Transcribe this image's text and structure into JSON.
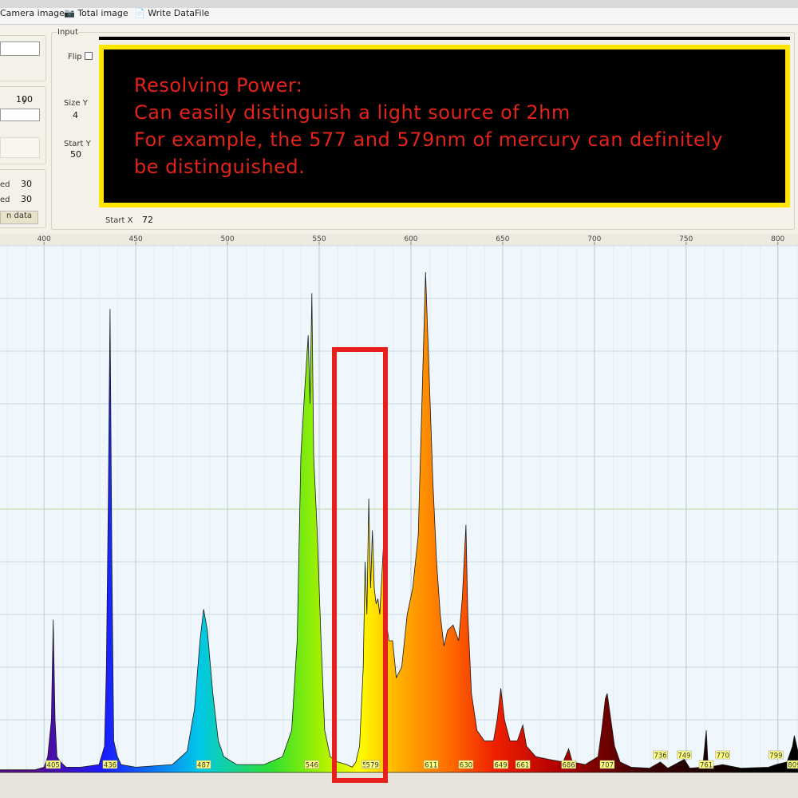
{
  "toolbar": {
    "items": [
      "Camera image",
      "Total image",
      "Write DataFile"
    ]
  },
  "left_panel": {
    "field_label": "y",
    "field_value": "100",
    "row1_label": "ed",
    "row1_value": "30",
    "row2_label": "ed",
    "row2_value": "30",
    "button": "n data"
  },
  "input_panel": {
    "title": "Input",
    "flip": "Flip",
    "size_y_label": "Size Y",
    "size_y": "4",
    "start_y_label": "Start Y",
    "start_y": "50",
    "start_x_label": "Start X",
    "start_x": "72"
  },
  "annotation": {
    "lines": [
      "Resolving Power:",
      "Can easily distinguish a light source of 2hm",
      "For example, the 577 and 579nm of mercury can definitely",
      "be distinguished."
    ]
  },
  "chart_data": {
    "type": "area",
    "x": [
      376,
      395,
      400,
      402,
      404,
      405,
      406,
      407,
      409,
      412,
      420,
      430,
      433,
      434,
      435,
      436,
      437,
      438,
      440,
      442,
      450,
      470,
      478,
      482,
      485,
      487,
      489,
      492,
      495,
      498,
      505,
      520,
      530,
      535,
      538,
      540,
      542,
      544,
      545,
      546,
      547,
      549,
      551,
      553,
      556,
      560,
      565,
      568,
      570,
      572,
      574,
      575,
      576,
      577,
      578,
      579,
      580,
      581,
      582,
      583,
      585,
      586,
      588,
      590,
      592,
      595,
      598,
      601,
      604,
      606,
      608,
      610,
      612,
      614,
      616,
      618,
      620,
      623,
      626,
      628,
      630,
      631,
      633,
      636,
      640,
      645,
      647,
      649,
      651,
      654,
      658,
      661,
      663,
      668,
      675,
      683,
      686,
      688,
      695,
      702,
      704,
      706,
      707,
      709,
      711,
      714,
      720,
      730,
      736,
      740,
      749,
      752,
      759,
      761,
      762,
      770,
      780,
      795,
      799,
      805,
      808,
      809,
      811
    ],
    "series": [
      {
        "values": [
          0.5,
          0.5,
          1,
          3,
          10,
          29,
          10,
          3,
          2,
          1,
          1,
          1.5,
          5,
          20,
          50,
          88,
          40,
          6,
          3,
          1.5,
          1,
          1.5,
          4,
          12,
          25,
          31,
          27,
          15,
          6,
          3,
          1.5,
          1.5,
          3,
          8,
          25,
          60,
          72,
          83,
          70,
          91,
          60,
          45,
          25,
          8,
          3,
          2,
          1.5,
          1,
          2,
          5,
          20,
          40,
          30,
          52,
          35,
          46,
          35,
          32,
          33,
          30,
          43,
          30,
          25,
          25,
          18,
          20,
          30,
          35,
          45,
          70,
          95,
          75,
          55,
          40,
          30,
          24,
          27,
          28,
          25,
          33,
          47,
          30,
          15,
          8,
          6,
          6,
          10,
          16,
          10,
          6,
          6,
          9,
          5,
          3,
          2.5,
          2,
          4.5,
          2,
          1.5,
          3,
          8,
          14,
          15,
          10,
          5,
          2,
          1,
          0.8,
          2,
          0.8,
          2.5,
          0.8,
          1,
          8,
          1,
          1.5,
          0.8,
          1,
          1.5,
          2,
          5,
          7,
          4
        ]
      }
    ],
    "xlim": [
      376,
      811
    ],
    "ylim": [
      0,
      100
    ],
    "xticks": [
      400,
      450,
      500,
      550,
      600,
      650,
      700,
      750,
      800
    ],
    "yticks": [
      0,
      10,
      20,
      30,
      40,
      50,
      60,
      70,
      80,
      90,
      100
    ],
    "grid": true,
    "peak_labels": [
      405,
      436,
      487,
      546,
      577,
      579,
      611,
      630,
      649,
      661,
      686,
      707,
      736,
      749,
      761,
      770,
      799,
      809
    ],
    "high_peak_labels": [
      736,
      749,
      770,
      799
    ]
  }
}
